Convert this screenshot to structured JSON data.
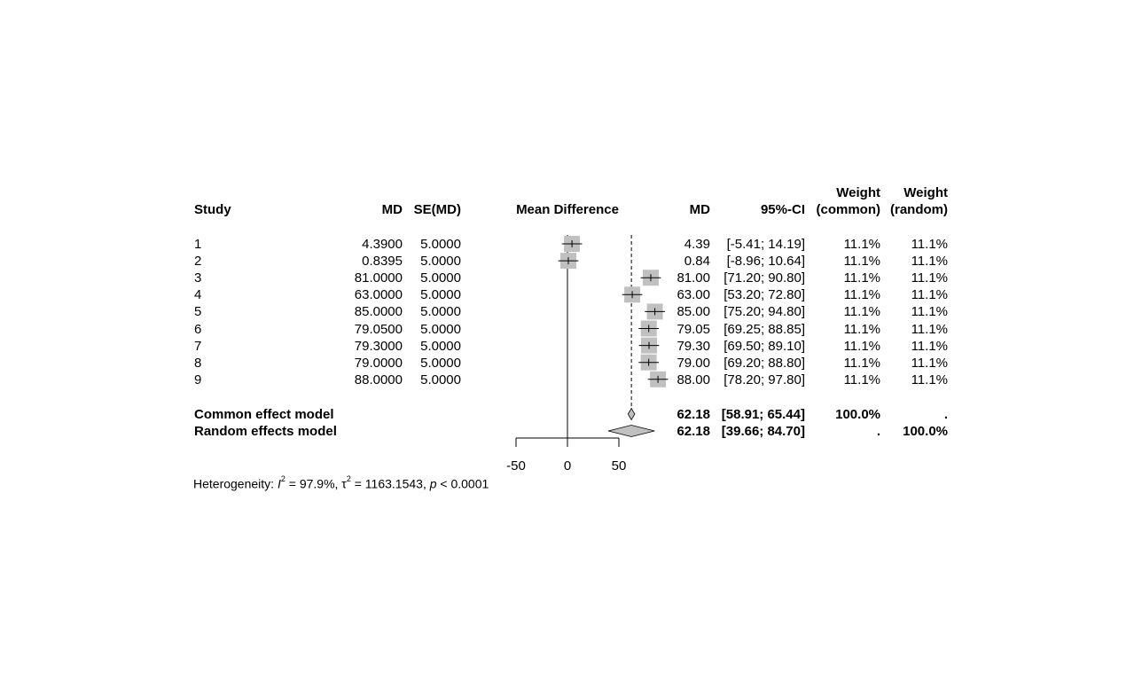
{
  "headers": {
    "study": "Study",
    "md": "MD",
    "se": "SE(MD)",
    "forest": "Mean Difference",
    "md2": "MD",
    "ci": "95%-CI",
    "weight1": "Weight",
    "weight1_sub": "(common)",
    "weight2": "Weight",
    "weight2_sub": "(random)"
  },
  "studies": [
    {
      "id": "1",
      "md": "4.3900",
      "se": "5.0000",
      "md_fmt": "4.39",
      "ci": "[-5.41; 14.19]",
      "w_common": "11.1%",
      "w_random": "11.1%"
    },
    {
      "id": "2",
      "md": "0.8395",
      "se": "5.0000",
      "md_fmt": "0.84",
      "ci": "[-8.96; 10.64]",
      "w_common": "11.1%",
      "w_random": "11.1%"
    },
    {
      "id": "3",
      "md": "81.0000",
      "se": "5.0000",
      "md_fmt": "81.00",
      "ci": "[71.20; 90.80]",
      "w_common": "11.1%",
      "w_random": "11.1%"
    },
    {
      "id": "4",
      "md": "63.0000",
      "se": "5.0000",
      "md_fmt": "63.00",
      "ci": "[53.20; 72.80]",
      "w_common": "11.1%",
      "w_random": "11.1%"
    },
    {
      "id": "5",
      "md": "85.0000",
      "se": "5.0000",
      "md_fmt": "85.00",
      "ci": "[75.20; 94.80]",
      "w_common": "11.1%",
      "w_random": "11.1%"
    },
    {
      "id": "6",
      "md": "79.0500",
      "se": "5.0000",
      "md_fmt": "79.05",
      "ci": "[69.25; 88.85]",
      "w_common": "11.1%",
      "w_random": "11.1%"
    },
    {
      "id": "7",
      "md": "79.3000",
      "se": "5.0000",
      "md_fmt": "79.30",
      "ci": "[69.50; 89.10]",
      "w_common": "11.1%",
      "w_random": "11.1%"
    },
    {
      "id": "8",
      "md": "79.0000",
      "se": "5.0000",
      "md_fmt": "79.00",
      "ci": "[69.20; 88.80]",
      "w_common": "11.1%",
      "w_random": "11.1%"
    },
    {
      "id": "9",
      "md": "88.0000",
      "se": "5.0000",
      "md_fmt": "88.00",
      "ci": "[78.20; 97.80]",
      "w_common": "11.1%",
      "w_random": "11.1%"
    }
  ],
  "summary": {
    "common": {
      "label": "Common effect model",
      "md_fmt": "62.18",
      "ci": "[58.91; 65.44]",
      "w_common": "100.0%",
      "w_random": "."
    },
    "random": {
      "label": "Random effects model",
      "md_fmt": "62.18",
      "ci": "[39.66; 84.70]",
      "w_common": ".",
      "w_random": "100.0%"
    }
  },
  "heterogeneity": {
    "prefix": "Heterogeneity: ",
    "i2_symbol": "I",
    "i2_value": " = 97.9%, ",
    "tau_symbol": "τ",
    "tau_value": " = 1163.1543, ",
    "p_symbol": "p",
    "p_value": " < 0.0001"
  },
  "chart_data": {
    "type": "forest",
    "x_ticks": [
      -50,
      0,
      50
    ],
    "x_range": [
      -50,
      50
    ],
    "null_line": 0,
    "studies": [
      {
        "study": "1",
        "md": 4.39,
        "lower": -5.41,
        "upper": 14.19
      },
      {
        "study": "2",
        "md": 0.8395,
        "lower": -8.96,
        "upper": 10.64
      },
      {
        "study": "3",
        "md": 81.0,
        "lower": 71.2,
        "upper": 90.8
      },
      {
        "study": "4",
        "md": 63.0,
        "lower": 53.2,
        "upper": 72.8
      },
      {
        "study": "5",
        "md": 85.0,
        "lower": 75.2,
        "upper": 94.8
      },
      {
        "study": "6",
        "md": 79.05,
        "lower": 69.25,
        "upper": 88.85
      },
      {
        "study": "7",
        "md": 79.3,
        "lower": 69.5,
        "upper": 89.1
      },
      {
        "study": "8",
        "md": 79.0,
        "lower": 69.2,
        "upper": 88.8
      },
      {
        "study": "9",
        "md": 88.0,
        "lower": 78.2,
        "upper": 97.8
      }
    ],
    "common_effect": {
      "md": 62.18,
      "lower": 58.91,
      "upper": 65.44
    },
    "random_effects": {
      "md": 62.18,
      "lower": 39.66,
      "upper": 84.7
    },
    "colors": {
      "square": "#c0c0c0",
      "diamond": "#c0c0c0",
      "line": "#000000"
    }
  }
}
